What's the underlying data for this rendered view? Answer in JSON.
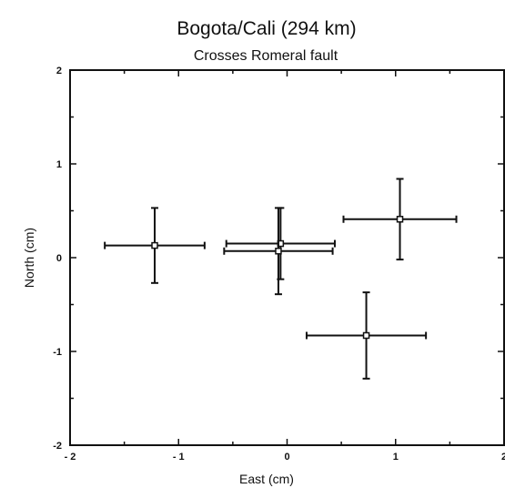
{
  "chart_data": {
    "type": "scatter",
    "title": "Bogota/Cali (294 km)",
    "subtitle": "Crosses Romeral fault",
    "xlabel": "East (cm)",
    "ylabel": "North (cm)",
    "xlim": [
      -2,
      2
    ],
    "ylim": [
      -2,
      2
    ],
    "xticks": [
      -2,
      -1,
      0,
      1,
      2
    ],
    "yticks": [
      -2,
      -1,
      0,
      1,
      2
    ],
    "xtick_labels": [
      "- 2",
      "- 1",
      "0",
      "1",
      "2"
    ],
    "ytick_labels": [
      "-2",
      "-1",
      "0",
      "1",
      "2"
    ],
    "grid": false,
    "points": [
      {
        "x": -1.22,
        "y": 0.13,
        "x_err": 0.46,
        "y_err": 0.4
      },
      {
        "x": -0.06,
        "y": 0.15,
        "x_err": 0.5,
        "y_err": 0.38
      },
      {
        "x": -0.08,
        "y": 0.07,
        "x_err": 0.5,
        "y_err": 0.46
      },
      {
        "x": 1.04,
        "y": 0.41,
        "x_err": 0.52,
        "y_err": 0.43
      },
      {
        "x": 0.73,
        "y": -0.83,
        "x_err": 0.55,
        "y_err": 0.46
      }
    ]
  }
}
